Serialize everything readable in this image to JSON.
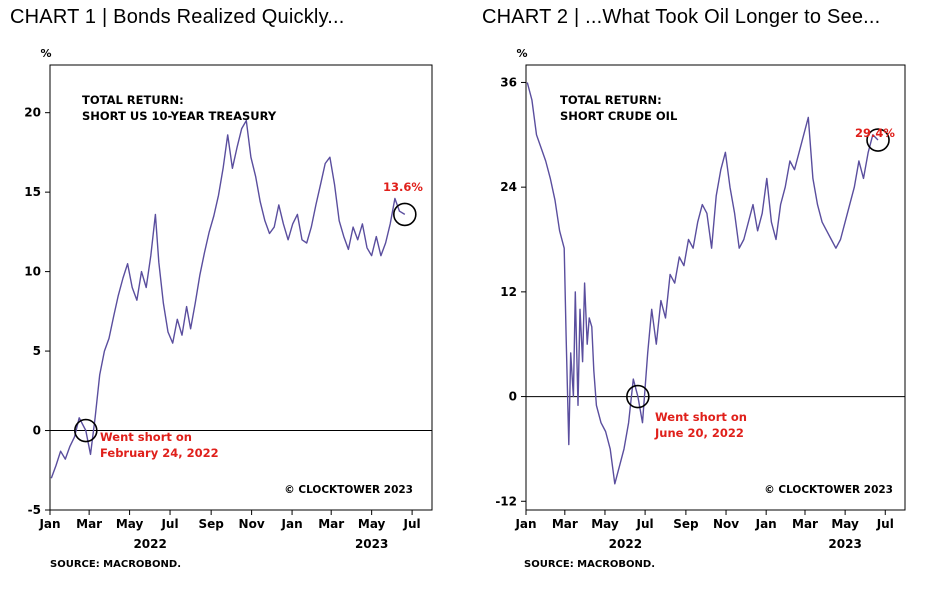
{
  "chart_data": [
    {
      "type": "line",
      "title": "CHART 1 | Bonds Realized Quickly...",
      "ylabel": "%",
      "ylim": [
        -5,
        23
      ],
      "yticks": [
        -5,
        0,
        5,
        10,
        15,
        20
      ],
      "xlim": [
        "2022-01-01",
        "2023-07-31"
      ],
      "x_ticks": [
        {
          "date": "2022-01-01",
          "label": "Jan"
        },
        {
          "date": "2022-03-01",
          "label": "Mar"
        },
        {
          "date": "2022-05-01",
          "label": "May"
        },
        {
          "date": "2022-07-01",
          "label": "Jul"
        },
        {
          "date": "2022-09-01",
          "label": "Sep"
        },
        {
          "date": "2022-11-01",
          "label": "Nov"
        },
        {
          "date": "2023-01-01",
          "label": "Jan"
        },
        {
          "date": "2023-03-01",
          "label": "Mar"
        },
        {
          "date": "2023-05-01",
          "label": "May"
        },
        {
          "date": "2023-07-01",
          "label": "Jul"
        }
      ],
      "year_labels": [
        {
          "date": "2022-06-01",
          "label": "2022"
        },
        {
          "date": "2023-05-01",
          "label": "2023"
        }
      ],
      "annotation_title": [
        "TOTAL RETURN:",
        "SHORT US 10-YEAR TREASURY"
      ],
      "annotation_event": [
        "Went short on",
        "February 24, 2022"
      ],
      "event_point": {
        "x": "2022-02-24",
        "y": 0
      },
      "final_label": "13.6%",
      "final_point": {
        "x": "2023-06-20",
        "y": 13.6
      },
      "copyright": "© CLOCKTOWER 2023",
      "source": "SOURCE: MACROBOND.",
      "line_color": "#5a4e9e",
      "accent_color": "#e0201b",
      "series": [
        {
          "x": [
            "2022-01-03",
            "2022-01-10",
            "2022-01-17",
            "2022-01-24",
            "2022-01-31",
            "2022-02-07",
            "2022-02-14",
            "2022-02-24",
            "2022-03-03",
            "2022-03-10",
            "2022-03-17",
            "2022-03-24",
            "2022-03-31",
            "2022-04-07",
            "2022-04-14",
            "2022-04-21",
            "2022-04-28",
            "2022-05-05",
            "2022-05-12",
            "2022-05-19",
            "2022-05-26",
            "2022-06-02",
            "2022-06-09",
            "2022-06-14",
            "2022-06-21",
            "2022-06-28",
            "2022-07-05",
            "2022-07-12",
            "2022-07-19",
            "2022-07-26",
            "2022-08-01",
            "2022-08-08",
            "2022-08-15",
            "2022-08-22",
            "2022-08-29",
            "2022-09-05",
            "2022-09-12",
            "2022-09-19",
            "2022-09-26",
            "2022-10-03",
            "2022-10-10",
            "2022-10-17",
            "2022-10-24",
            "2022-10-31",
            "2022-11-07",
            "2022-11-14",
            "2022-11-21",
            "2022-11-28",
            "2022-12-05",
            "2022-12-12",
            "2022-12-19",
            "2022-12-26",
            "2023-01-02",
            "2023-01-09",
            "2023-01-16",
            "2023-01-23",
            "2023-01-30",
            "2023-02-06",
            "2023-02-13",
            "2023-02-20",
            "2023-02-27",
            "2023-03-06",
            "2023-03-13",
            "2023-03-20",
            "2023-03-27",
            "2023-04-03",
            "2023-04-10",
            "2023-04-17",
            "2023-04-24",
            "2023-05-01",
            "2023-05-08",
            "2023-05-15",
            "2023-05-22",
            "2023-05-29",
            "2023-06-05",
            "2023-06-12",
            "2023-06-20"
          ],
          "values": [
            -3.0,
            -2.2,
            -1.3,
            -1.8,
            -1.0,
            -0.4,
            0.8,
            0.0,
            -1.5,
            0.8,
            3.5,
            5.0,
            5.8,
            7.2,
            8.5,
            9.6,
            10.5,
            9.0,
            8.2,
            10.0,
            9.0,
            11.0,
            13.6,
            10.6,
            8.0,
            6.2,
            5.5,
            7.0,
            6.0,
            7.8,
            6.4,
            8.0,
            9.8,
            11.2,
            12.5,
            13.5,
            14.8,
            16.5,
            18.6,
            16.5,
            17.8,
            19.0,
            19.5,
            17.2,
            16.0,
            14.4,
            13.2,
            12.4,
            12.8,
            14.2,
            13.0,
            12.0,
            13.0,
            13.6,
            12.0,
            11.8,
            12.8,
            14.2,
            15.5,
            16.8,
            17.2,
            15.5,
            13.2,
            12.2,
            11.4,
            12.8,
            12.0,
            13.0,
            11.5,
            11.0,
            12.2,
            11.0,
            11.8,
            13.0,
            14.6,
            13.8,
            13.6
          ]
        }
      ]
    },
    {
      "type": "line",
      "title": "CHART 2 | ...What Took Oil Longer to See...",
      "ylabel": "%",
      "ylim": [
        -13,
        38
      ],
      "yticks": [
        -12,
        0,
        12,
        24,
        36
      ],
      "xlim": [
        "2022-01-01",
        "2023-07-31"
      ],
      "x_ticks": [
        {
          "date": "2022-01-01",
          "label": "Jan"
        },
        {
          "date": "2022-03-01",
          "label": "Mar"
        },
        {
          "date": "2022-05-01",
          "label": "May"
        },
        {
          "date": "2022-07-01",
          "label": "Jul"
        },
        {
          "date": "2022-09-01",
          "label": "Sep"
        },
        {
          "date": "2022-11-01",
          "label": "Nov"
        },
        {
          "date": "2023-01-01",
          "label": "Jan"
        },
        {
          "date": "2023-03-01",
          "label": "Mar"
        },
        {
          "date": "2023-05-01",
          "label": "May"
        },
        {
          "date": "2023-07-01",
          "label": "Jul"
        }
      ],
      "year_labels": [
        {
          "date": "2022-06-01",
          "label": "2022"
        },
        {
          "date": "2023-05-01",
          "label": "2023"
        }
      ],
      "annotation_title": [
        "TOTAL RETURN:",
        "SHORT CRUDE OIL"
      ],
      "annotation_event": [
        "Went short on",
        "June 20, 2022"
      ],
      "event_point": {
        "x": "2022-06-20",
        "y": 0
      },
      "final_label": "29.4%",
      "final_point": {
        "x": "2023-06-20",
        "y": 29.4
      },
      "copyright": "© CLOCKTOWER 2023",
      "source": "SOURCE: MACROBOND.",
      "line_color": "#5a4e9e",
      "accent_color": "#e0201b",
      "series": [
        {
          "x": [
            "2022-01-03",
            "2022-01-10",
            "2022-01-17",
            "2022-01-24",
            "2022-01-31",
            "2022-02-07",
            "2022-02-14",
            "2022-02-21",
            "2022-02-28",
            "2022-03-03",
            "2022-03-07",
            "2022-03-10",
            "2022-03-14",
            "2022-03-17",
            "2022-03-21",
            "2022-03-24",
            "2022-03-28",
            "2022-03-31",
            "2022-04-04",
            "2022-04-07",
            "2022-04-11",
            "2022-04-14",
            "2022-04-18",
            "2022-04-25",
            "2022-05-02",
            "2022-05-09",
            "2022-05-16",
            "2022-05-23",
            "2022-05-30",
            "2022-06-06",
            "2022-06-13",
            "2022-06-20",
            "2022-06-27",
            "2022-07-05",
            "2022-07-11",
            "2022-07-18",
            "2022-07-25",
            "2022-08-01",
            "2022-08-08",
            "2022-08-15",
            "2022-08-22",
            "2022-08-29",
            "2022-09-05",
            "2022-09-12",
            "2022-09-19",
            "2022-09-26",
            "2022-10-03",
            "2022-10-10",
            "2022-10-17",
            "2022-10-24",
            "2022-10-31",
            "2022-11-07",
            "2022-11-14",
            "2022-11-21",
            "2022-11-28",
            "2022-12-05",
            "2022-12-12",
            "2022-12-19",
            "2022-12-26",
            "2023-01-02",
            "2023-01-09",
            "2023-01-16",
            "2023-01-23",
            "2023-01-30",
            "2023-02-06",
            "2023-02-13",
            "2023-02-20",
            "2023-02-27",
            "2023-03-06",
            "2023-03-13",
            "2023-03-20",
            "2023-03-27",
            "2023-04-03",
            "2023-04-10",
            "2023-04-17",
            "2023-04-24",
            "2023-05-01",
            "2023-05-08",
            "2023-05-15",
            "2023-05-22",
            "2023-05-29",
            "2023-06-05",
            "2023-06-12",
            "2023-06-20"
          ],
          "values": [
            36.0,
            34.0,
            30.0,
            28.5,
            27.0,
            25.0,
            22.5,
            19.0,
            17.0,
            7.0,
            -5.5,
            5.0,
            0.0,
            12.0,
            -1.0,
            10.0,
            4.0,
            13.0,
            6.0,
            9.0,
            8.0,
            3.0,
            -1.0,
            -3.0,
            -4.0,
            -6.0,
            -10.0,
            -8.0,
            -6.0,
            -3.0,
            2.0,
            0.0,
            -3.0,
            5.0,
            10.0,
            6.0,
            11.0,
            9.0,
            14.0,
            13.0,
            16.0,
            15.0,
            18.0,
            17.0,
            20.0,
            22.0,
            21.0,
            17.0,
            23.0,
            26.0,
            28.0,
            24.0,
            21.0,
            17.0,
            18.0,
            20.0,
            22.0,
            19.0,
            21.0,
            25.0,
            20.0,
            18.0,
            22.0,
            24.0,
            27.0,
            26.0,
            28.0,
            30.0,
            32.0,
            25.0,
            22.0,
            20.0,
            19.0,
            18.0,
            17.0,
            18.0,
            20.0,
            22.0,
            24.0,
            27.0,
            25.0,
            28.0,
            30.0,
            29.4
          ]
        }
      ]
    }
  ]
}
